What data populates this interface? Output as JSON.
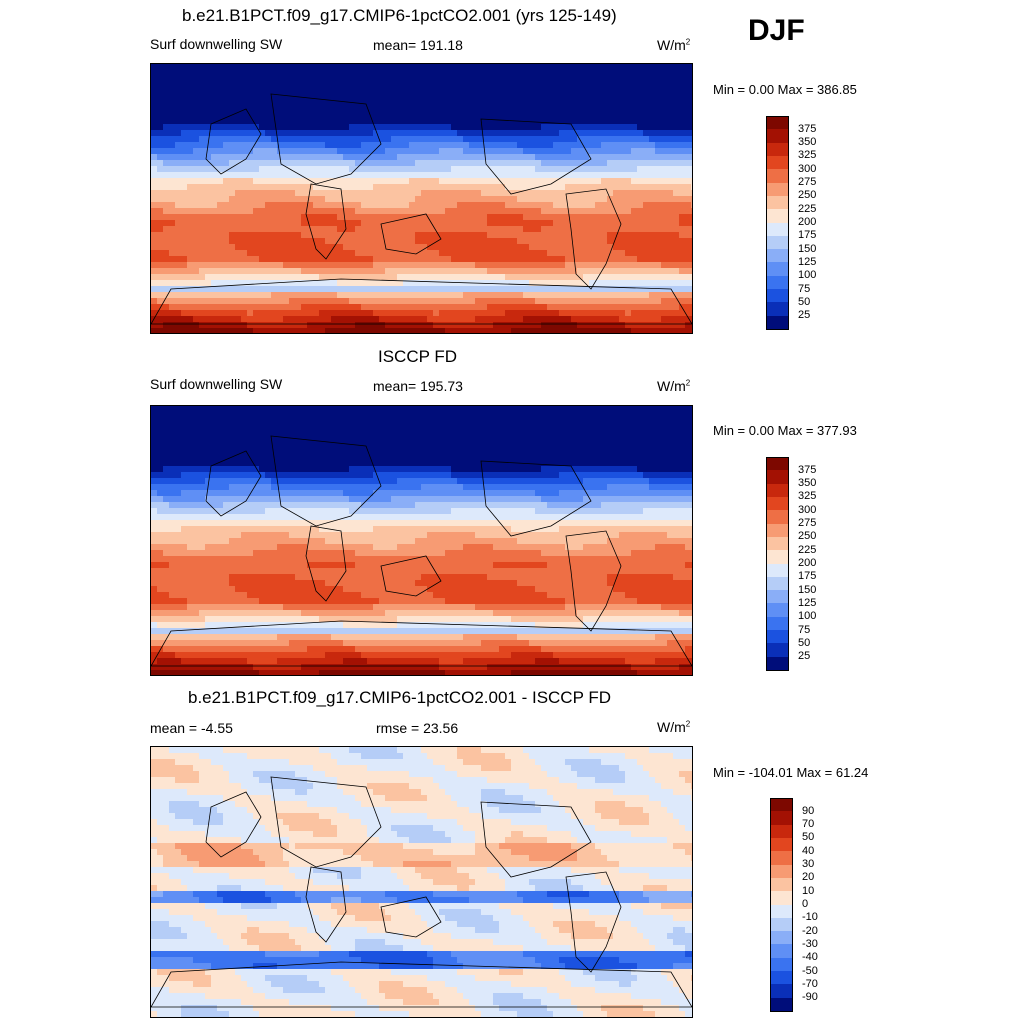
{
  "season": "DJF",
  "panels": [
    {
      "title": "b.e21.B1PCT.f09_g17.CMIP6-1pctCO2.001 (yrs 125-149)",
      "variable": "Surf downwelling SW",
      "stat_center": "mean= 191.18",
      "units_base": "W/m",
      "units_exp": "2",
      "minmax": "Min =   0.00 Max = 386.85",
      "cbar_labels": [
        "375",
        "350",
        "325",
        "300",
        "275",
        "250",
        "225",
        "200",
        "175",
        "150",
        "125",
        "100",
        "75",
        "50",
        "25"
      ]
    },
    {
      "title": "ISCCP FD",
      "variable": "Surf downwelling SW",
      "stat_center": "mean= 195.73",
      "units_base": "W/m",
      "units_exp": "2",
      "minmax": "Min =   0.00 Max = 377.93",
      "cbar_labels": [
        "375",
        "350",
        "325",
        "300",
        "275",
        "250",
        "225",
        "200",
        "175",
        "150",
        "125",
        "100",
        "75",
        "50",
        "25"
      ]
    },
    {
      "title": "b.e21.B1PCT.f09_g17.CMIP6-1pctCO2.001 - ISCCP FD",
      "stat_left": "mean =  -4.55",
      "stat_center": "rmse =  23.56",
      "units_base": "W/m",
      "units_exp": "2",
      "minmax": "Min = -104.01 Max =  61.24",
      "cbar_labels": [
        "90",
        "70",
        "50",
        "40",
        "30",
        "20",
        "10",
        "0",
        "-10",
        "-20",
        "-30",
        "-40",
        "-50",
        "-70",
        "-90"
      ]
    }
  ],
  "colors": {
    "palette": [
      "#000d7a",
      "#0a2fb8",
      "#1b52e0",
      "#3a73f0",
      "#5f8ff5",
      "#8aaef7",
      "#b5cdf7",
      "#dde9fb",
      "#fde5d2",
      "#fbc3a1",
      "#f79b73",
      "#ee6f45",
      "#e2461f",
      "#c8280d",
      "#a31103",
      "#7d0800"
    ]
  }
}
